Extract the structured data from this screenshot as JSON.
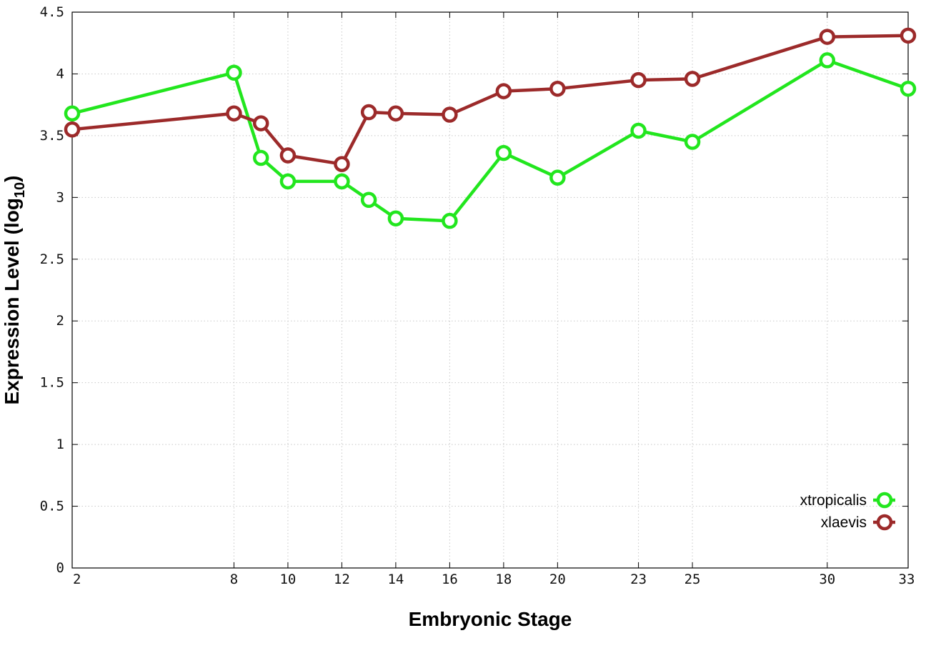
{
  "chart_data": {
    "type": "line",
    "xlabel": "Embryonic Stage",
    "ylabel_main": "Expression Level (log",
    "ylabel_sub": "10",
    "ylabel_close": ")",
    "ylim": [
      0,
      4.5
    ],
    "y_ticks": [
      "0",
      "0.5",
      "1",
      "1.5",
      "2",
      "2.5",
      "3",
      "3.5",
      "4",
      "4.5"
    ],
    "categories": [
      "2",
      "8",
      "9",
      "10",
      "12",
      "13",
      "14",
      "16",
      "18",
      "20",
      "23",
      "25",
      "30",
      "33"
    ],
    "x_tick_labels": [
      "2",
      "8",
      "10",
      "12",
      "14",
      "16",
      "18",
      "20",
      "23",
      "25",
      "30",
      "33"
    ],
    "grid": true,
    "legend_position": "bottom-right",
    "series": [
      {
        "name": "xtropicalis",
        "color": "#22e61e",
        "x": [
          2,
          8,
          9,
          10,
          12,
          13,
          14,
          16,
          18,
          20,
          23,
          25,
          30,
          33
        ],
        "values": [
          3.68,
          4.01,
          3.32,
          3.13,
          3.13,
          2.98,
          2.83,
          2.81,
          3.36,
          3.16,
          3.54,
          3.45,
          4.11,
          3.88
        ]
      },
      {
        "name": "xlaevis",
        "color": "#9c2a2a",
        "x": [
          2,
          8,
          9,
          10,
          12,
          13,
          14,
          16,
          18,
          20,
          23,
          25,
          30,
          33
        ],
        "values": [
          3.55,
          3.68,
          3.6,
          3.34,
          3.27,
          3.69,
          3.68,
          3.67,
          3.86,
          3.88,
          3.95,
          3.96,
          4.3,
          4.31
        ]
      }
    ]
  }
}
